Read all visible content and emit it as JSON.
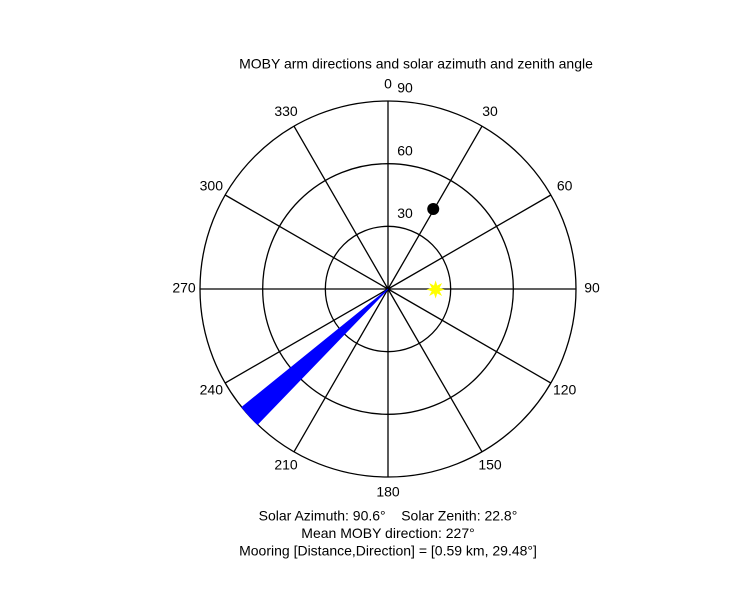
{
  "chart_data": {
    "type": "polar",
    "title": "MOBY arm directions and solar azimuth and zenith angle",
    "rlim": [
      0,
      90
    ],
    "rticks": [
      30,
      60,
      90
    ],
    "thetaticks": [
      0,
      30,
      60,
      90,
      120,
      150,
      180,
      210,
      240,
      270,
      300,
      330
    ],
    "wedges": [
      {
        "theta": [
          224,
          231
        ],
        "r": 90,
        "color": "#0000ff"
      }
    ],
    "points": [
      {
        "theta": 29.48,
        "r": 44,
        "color": "#000000",
        "marker": "circle"
      },
      {
        "theta": 90.6,
        "r": 22.8,
        "color": "#ffff00",
        "marker": "star"
      }
    ],
    "annotations": [
      "Solar Azimuth: 90.6°    Solar Zenith: 22.8°",
      "Mean MOBY direction: 227°",
      "Mooring [Distance,Direction] = [0.59 km, 29.48°]"
    ]
  }
}
